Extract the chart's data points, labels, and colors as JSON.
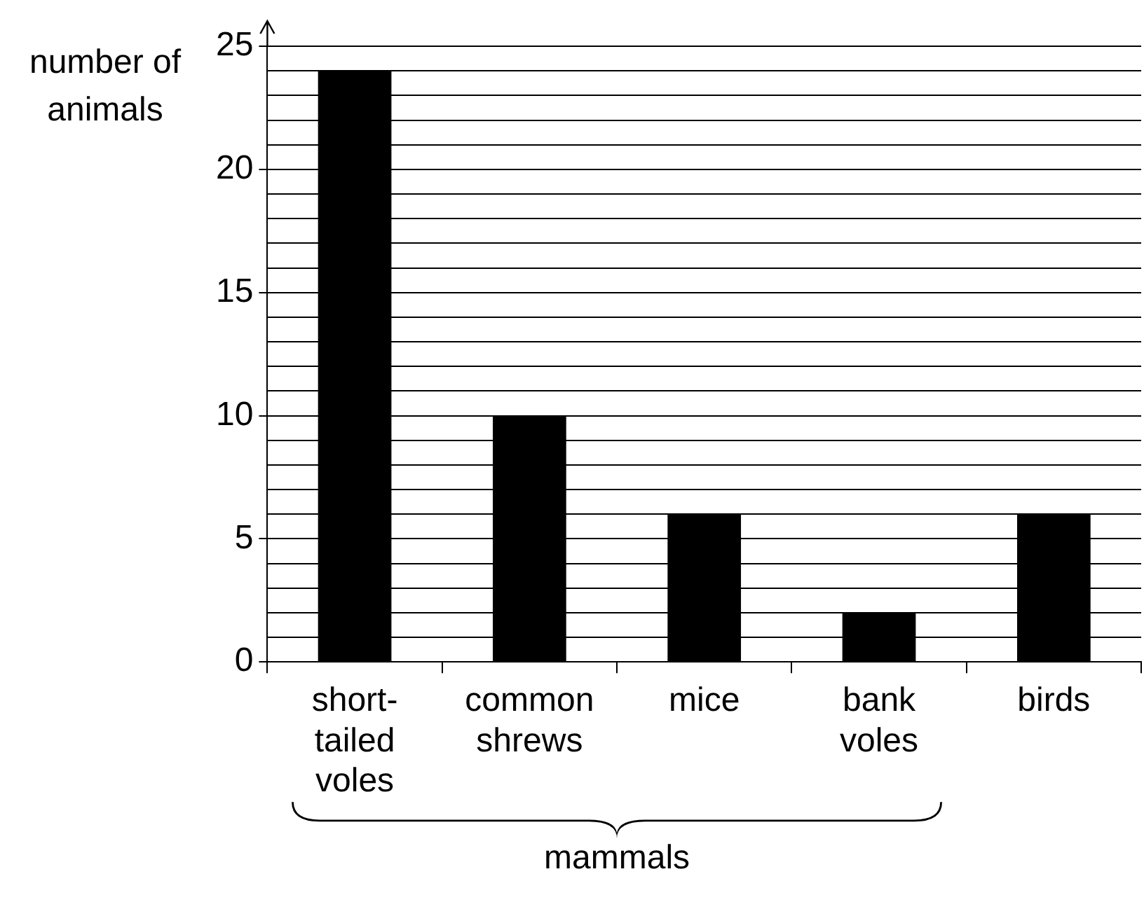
{
  "chart_data": {
    "type": "bar",
    "ylabel": "number of animals",
    "categories": [
      "short-tailed voles",
      "common shrews",
      "mice",
      "bank voles",
      "birds"
    ],
    "values": [
      24,
      10,
      6,
      2,
      6
    ],
    "color": "#000000",
    "ylim": [
      0,
      25
    ],
    "yticks": [
      0,
      {
        "value": 1,
        "label": null
      },
      {
        "value": 2,
        "label": null
      },
      {
        "value": 3,
        "label": null
      },
      {
        "value": 4,
        "label": null
      },
      5,
      {
        "value": 6,
        "label": null
      },
      {
        "value": 7,
        "label": null
      },
      {
        "value": 8,
        "label": null
      },
      {
        "value": 9,
        "label": null
      },
      10,
      {
        "value": 11,
        "label": null
      },
      {
        "value": 12,
        "label": null
      },
      {
        "value": 13,
        "label": null
      },
      {
        "value": 14,
        "label": null
      },
      15,
      {
        "value": 16,
        "label": null
      },
      {
        "value": 17,
        "label": null
      },
      {
        "value": 18,
        "label": null
      },
      {
        "value": 19,
        "label": null
      },
      20,
      {
        "value": 21,
        "label": null
      },
      {
        "value": 22,
        "label": null
      },
      {
        "value": 23,
        "label": null
      },
      {
        "value": 24,
        "label": null
      },
      25
    ],
    "grid": "y",
    "annotations": [
      "mammals"
    ]
  }
}
